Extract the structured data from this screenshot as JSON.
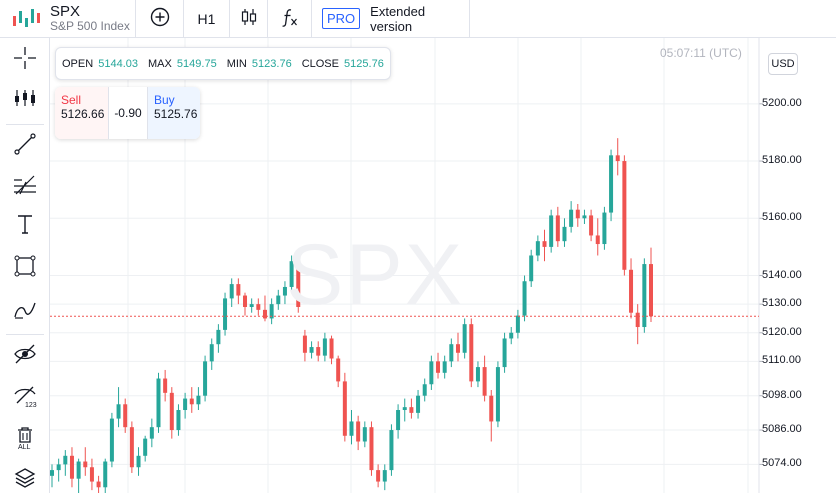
{
  "header": {
    "symbol": "SPX",
    "instrument_name": "S&P 500 Index",
    "timeframe": "H1",
    "pro_badge": "PRO",
    "extended_label": "Extended version"
  },
  "toolbar_icons": [
    "logo-bars-icon",
    "plus-circle-icon",
    "candles-icon",
    "fx-icon"
  ],
  "left_tools": [
    "crosshair-icon",
    "indicators-icon",
    "trendline-icon",
    "fib-icon",
    "text-icon",
    "rect-icon",
    "brush-icon",
    "hide-icon",
    "ruler-icon",
    "trash-all-icon",
    "layers-icon"
  ],
  "left_labels": {
    "ruler_badge": "123",
    "trash_badge": "ALL"
  },
  "legend": {
    "open_label": "OPEN",
    "open_value": "5144.03",
    "max_label": "MAX",
    "max_value": "5149.75",
    "min_label": "MIN",
    "min_value": "5123.76",
    "close_label": "CLOSE",
    "close_value": "5125.76"
  },
  "trade": {
    "sell_label": "Sell",
    "sell_price": "5126.66",
    "spread": "-0.90",
    "buy_label": "Buy",
    "buy_price": "5125.76"
  },
  "clock": "05:07:11 (UTC)",
  "currency": "USD",
  "watermark": "SPX",
  "price_axis": {
    "ticks": [
      "5200.00",
      "5180.00",
      "5160.00",
      "5140.00",
      "5130.00",
      "5120.00",
      "5110.00",
      "5098.00",
      "5086.00",
      "5074.00"
    ],
    "current_price": 5125.76
  },
  "colors": {
    "up": "#26a69a",
    "down": "#ef5350",
    "accent": "#2962ff",
    "price_line": "#ef5350"
  },
  "chart_data": {
    "type": "candlestick",
    "x_unit": "hourly bars",
    "y_range": [
      5064,
      5223
    ],
    "candles": [
      [
        5070,
        5074,
        5066,
        5072
      ],
      [
        5072,
        5076,
        5068,
        5074
      ],
      [
        5074,
        5079,
        5070,
        5077
      ],
      [
        5077,
        5080,
        5066,
        5069
      ],
      [
        5069,
        5076,
        5064,
        5075
      ],
      [
        5075,
        5080,
        5070,
        5073
      ],
      [
        5073,
        5076,
        5065,
        5068
      ],
      [
        5068,
        5070,
        5064,
        5066
      ],
      [
        5066,
        5076,
        5064,
        5075
      ],
      [
        5075,
        5092,
        5073,
        5090
      ],
      [
        5090,
        5101,
        5087,
        5095
      ],
      [
        5095,
        5097,
        5085,
        5087
      ],
      [
        5087,
        5089,
        5071,
        5073
      ],
      [
        5073,
        5080,
        5070,
        5077
      ],
      [
        5077,
        5084,
        5075,
        5083
      ],
      [
        5083,
        5090,
        5080,
        5087
      ],
      [
        5087,
        5106,
        5085,
        5104
      ],
      [
        5104,
        5107,
        5096,
        5099
      ],
      [
        5099,
        5101,
        5083,
        5086
      ],
      [
        5086,
        5095,
        5084,
        5093
      ],
      [
        5093,
        5099,
        5090,
        5097
      ],
      [
        5097,
        5101,
        5092,
        5095
      ],
      [
        5095,
        5101,
        5093,
        5098
      ],
      [
        5098,
        5112,
        5096,
        5110
      ],
      [
        5110,
        5118,
        5107,
        5116
      ],
      [
        5116,
        5123,
        5113,
        5121
      ],
      [
        5121,
        5134,
        5119,
        5132
      ],
      [
        5132,
        5139,
        5129,
        5137
      ],
      [
        5137,
        5139,
        5130,
        5133
      ],
      [
        5133,
        5134,
        5126,
        5129
      ],
      [
        5129,
        5132,
        5127,
        5130
      ],
      [
        5130,
        5132,
        5126,
        5128
      ],
      [
        5128,
        5133,
        5124,
        5125
      ],
      [
        5125,
        5132,
        5123,
        5130
      ],
      [
        5130,
        5135,
        5128,
        5133
      ],
      [
        5133,
        5138,
        5130,
        5136
      ],
      [
        5136,
        5147,
        5134,
        5145
      ],
      [
        5145,
        5148,
        5127,
        5129
      ],
      [
        5119,
        5121,
        5110,
        5113
      ],
      [
        5113,
        5117,
        5111,
        5115
      ],
      [
        5115,
        5117,
        5110,
        5112
      ],
      [
        5112,
        5120,
        5110,
        5118
      ],
      [
        5118,
        5119,
        5109,
        5111
      ],
      [
        5111,
        5112,
        5101,
        5103
      ],
      [
        5103,
        5106,
        5082,
        5084
      ],
      [
        5084,
        5093,
        5081,
        5089
      ],
      [
        5089,
        5091,
        5079,
        5082
      ],
      [
        5082,
        5089,
        5080,
        5087
      ],
      [
        5087,
        5089,
        5070,
        5072
      ],
      [
        5072,
        5074,
        5066,
        5068
      ],
      [
        5068,
        5074,
        5065,
        5072
      ],
      [
        5072,
        5088,
        5070,
        5086
      ],
      [
        5086,
        5095,
        5083,
        5093
      ],
      [
        5093,
        5097,
        5089,
        5094
      ],
      [
        5094,
        5097,
        5090,
        5092
      ],
      [
        5092,
        5100,
        5090,
        5098
      ],
      [
        5098,
        5104,
        5096,
        5102
      ],
      [
        5102,
        5112,
        5100,
        5110
      ],
      [
        5110,
        5113,
        5104,
        5106
      ],
      [
        5106,
        5112,
        5104,
        5110
      ],
      [
        5110,
        5118,
        5108,
        5116
      ],
      [
        5116,
        5120,
        5110,
        5113
      ],
      [
        5113,
        5125,
        5111,
        5123
      ],
      [
        5123,
        5125,
        5101,
        5103
      ],
      [
        5103,
        5110,
        5101,
        5108
      ],
      [
        5108,
        5112,
        5096,
        5098
      ],
      [
        5098,
        5100,
        5082,
        5089
      ],
      [
        5089,
        5110,
        5087,
        5108
      ],
      [
        5108,
        5120,
        5106,
        5118
      ],
      [
        5118,
        5122,
        5116,
        5120
      ],
      [
        5120,
        5128,
        5118,
        5126
      ],
      [
        5126,
        5140,
        5124,
        5138
      ],
      [
        5138,
        5149,
        5136,
        5147
      ],
      [
        5147,
        5154,
        5145,
        5152
      ],
      [
        5152,
        5156,
        5145,
        5150
      ],
      [
        5150,
        5163,
        5148,
        5161
      ],
      [
        5161,
        5164,
        5150,
        5152
      ],
      [
        5152,
        5160,
        5150,
        5157
      ],
      [
        5157,
        5166,
        5155,
        5163
      ],
      [
        5163,
        5165,
        5157,
        5160
      ],
      [
        5160,
        5163,
        5158,
        5161
      ],
      [
        5161,
        5163,
        5152,
        5154
      ],
      [
        5154,
        5160,
        5147,
        5151
      ],
      [
        5151,
        5164,
        5149,
        5162
      ],
      [
        5162,
        5184,
        5159,
        5182
      ],
      [
        5182,
        5188,
        5175,
        5180
      ],
      [
        5180,
        5182,
        5140,
        5142
      ],
      [
        5142,
        5146,
        5125,
        5127
      ],
      [
        5127,
        5130,
        5116,
        5122
      ],
      [
        5122,
        5146,
        5120,
        5144
      ],
      [
        5144,
        5149.75,
        5123.76,
        5125.76
      ]
    ]
  }
}
